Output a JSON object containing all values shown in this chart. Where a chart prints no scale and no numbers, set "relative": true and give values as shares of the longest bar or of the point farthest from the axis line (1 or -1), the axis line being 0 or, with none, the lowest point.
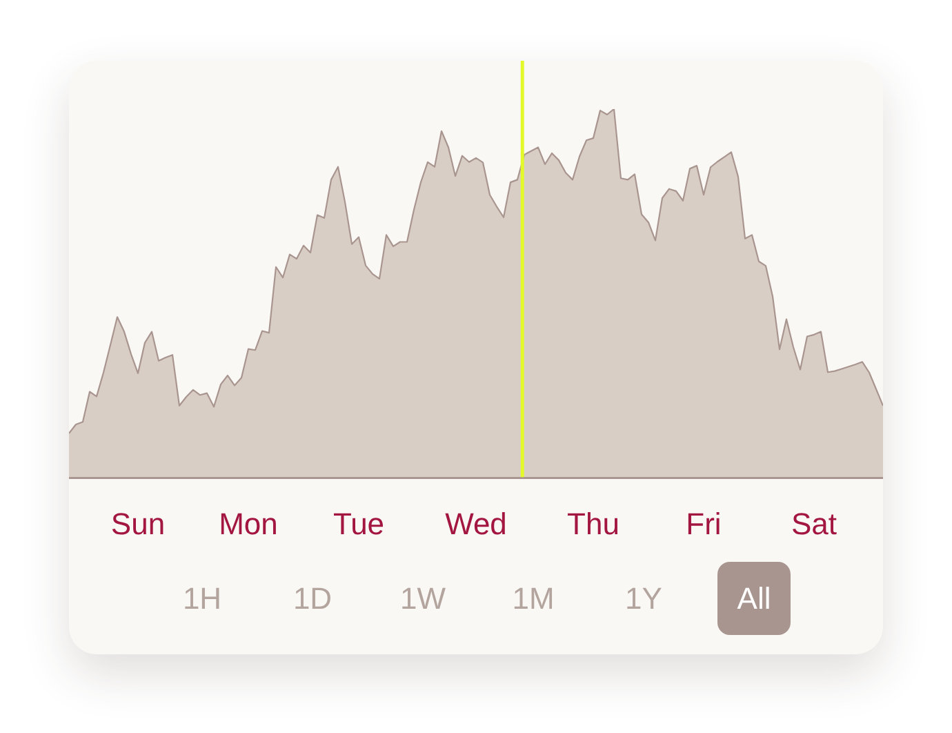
{
  "chart_data": {
    "type": "area",
    "relative": true,
    "color": "#d9cec5",
    "categories": [
      null,
      null,
      null,
      null,
      null,
      null,
      null,
      null,
      null,
      null,
      "Sun",
      null,
      null,
      null,
      null,
      null,
      null,
      null,
      null,
      null,
      null,
      null,
      null,
      null,
      null,
      null,
      "Mon",
      null,
      null,
      null,
      null,
      null,
      null,
      null,
      null,
      null,
      null,
      null,
      null,
      null,
      null,
      null,
      "Tue",
      null,
      null,
      null,
      null,
      null,
      null,
      null,
      null,
      null,
      null,
      null,
      null,
      null,
      null,
      null,
      null,
      "Wed",
      null,
      null,
      null,
      null,
      null,
      null,
      null,
      null,
      null,
      null,
      null,
      null,
      null,
      null,
      null,
      null,
      "Thu",
      null,
      null,
      null,
      null,
      null,
      null,
      null,
      null,
      null,
      null,
      null,
      null,
      null,
      null,
      null,
      "Fri",
      null,
      null,
      null,
      null,
      null,
      null,
      null,
      null,
      null,
      null,
      null,
      null,
      null,
      null,
      null,
      "Sat",
      null,
      null,
      null,
      null,
      null,
      null,
      null,
      null,
      null,
      null
    ],
    "values": [
      0.119,
      0.143,
      0.15,
      0.232,
      0.219,
      0.284,
      0.359,
      0.435,
      0.395,
      0.334,
      0.282,
      0.365,
      0.395,
      0.316,
      0.325,
      0.332,
      0.194,
      0.218,
      0.237,
      0.223,
      0.228,
      0.191,
      0.252,
      0.276,
      0.249,
      0.27,
      0.348,
      0.345,
      0.397,
      0.392,
      0.571,
      0.542,
      0.605,
      0.593,
      0.629,
      0.61,
      0.712,
      0.704,
      0.808,
      0.843,
      0.748,
      0.633,
      0.652,
      0.575,
      0.552,
      0.539,
      0.658,
      0.627,
      0.639,
      0.639,
      0.726,
      0.801,
      0.856,
      0.843,
      0.94,
      0.896,
      0.818,
      0.873,
      0.856,
      0.867,
      0.855,
      0.767,
      0.735,
      0.706,
      0.801,
      0.808,
      0.876,
      0.886,
      0.896,
      0.85,
      0.88,
      0.861,
      0.827,
      0.808,
      0.871,
      0.915,
      0.921,
      0.996,
      0.985,
      1,
      0.812,
      0.808,
      0.823,
      0.714,
      0.692,
      0.643,
      0.758,
      0.783,
      0.777,
      0.751,
      0.838,
      0.846,
      0.767,
      0.842,
      0.857,
      0.87,
      0.883,
      0.816,
      0.648,
      0.658,
      0.586,
      0.574,
      0.491,
      0.347,
      0.429,
      0.353,
      0.292,
      0.382,
      0.387,
      0.395,
      0.285,
      0.288,
      0.294,
      0.3,
      0.306,
      0.313,
      0.284,
      0.239,
      0.194
    ],
    "annotations": [
      "1H",
      "1D",
      "1W",
      "1M",
      "1Y",
      "All"
    ],
    "grid": false,
    "legend": false
  }
}
